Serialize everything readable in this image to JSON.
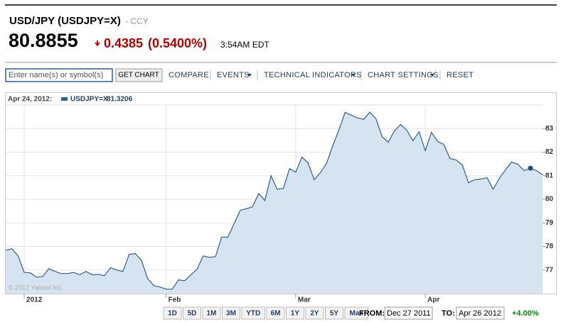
{
  "header": {
    "title": "USD/JPY (USDJPY=X)",
    "subtitle": "- CCY",
    "price": "80.8855",
    "change": "0.4385",
    "change_percent": "(0.5400%)",
    "time": "3:54AM EDT"
  },
  "toolbar": {
    "search_placeholder": "Enter name(s) or symbol(s)",
    "get_chart": "GET CHART",
    "compare": "COMPARE",
    "events": "EVENTS",
    "technical_indicators": "TECHNICAL INDICATORS",
    "chart_settings": "CHART SETTINGS",
    "reset": "RESET"
  },
  "chart_data": {
    "type": "area",
    "hover_date": "Apr 24, 2012:",
    "hover_value": 81.3206,
    "watermark": "© 2012 Yahoo! Inc.",
    "categories": [
      null,
      null,
      null,
      "2012",
      null,
      null,
      null,
      null,
      null,
      null,
      null,
      null,
      null,
      null,
      null,
      null,
      null,
      null,
      null,
      null,
      null,
      null,
      null,
      null,
      null,
      null,
      "Feb",
      null,
      null,
      null,
      null,
      null,
      null,
      null,
      null,
      null,
      null,
      null,
      null,
      null,
      null,
      null,
      null,
      null,
      null,
      null,
      null,
      "Mar",
      null,
      null,
      null,
      null,
      null,
      null,
      null,
      null,
      null,
      null,
      null,
      null,
      null,
      null,
      null,
      null,
      null,
      null,
      null,
      null,
      "Apr",
      null,
      null,
      null,
      null,
      null,
      null,
      null,
      null,
      null,
      null,
      null,
      null,
      null,
      null,
      null,
      null,
      null,
      null,
      null
    ],
    "series": [
      {
        "name": "USDJPY=X",
        "color": "#2f5f8e",
        "fill": "#d5e4f0",
        "values": [
          77.84,
          77.9,
          77.6,
          76.9,
          76.88,
          76.7,
          76.73,
          77.06,
          76.94,
          76.85,
          76.85,
          76.9,
          76.8,
          76.94,
          76.8,
          76.82,
          76.76,
          77.1,
          77.0,
          76.94,
          77.66,
          77.7,
          77.42,
          76.64,
          76.34,
          76.28,
          76.19,
          76.19,
          76.58,
          76.55,
          76.79,
          77.03,
          77.6,
          77.54,
          77.57,
          78.4,
          78.39,
          78.96,
          79.53,
          79.6,
          79.68,
          80.25,
          79.95,
          81.0,
          80.43,
          80.46,
          81.3,
          81.15,
          81.79,
          81.55,
          80.83,
          81.13,
          81.52,
          82.27,
          82.93,
          83.69,
          83.57,
          83.45,
          83.39,
          83.69,
          83.42,
          82.66,
          82.42,
          82.9,
          83.17,
          82.93,
          82.48,
          82.87,
          82.06,
          82.84,
          82.45,
          82.33,
          81.73,
          81.67,
          81.46,
          80.7,
          80.83,
          80.86,
          80.92,
          80.43,
          80.89,
          81.25,
          81.58,
          81.49,
          81.22,
          81.3,
          81.22,
          81.04
        ]
      }
    ],
    "ylim": [
      76,
      84
    ],
    "yticks": [
      77,
      78,
      79,
      80,
      81,
      82,
      83
    ],
    "grid": true
  },
  "footer": {
    "ranges": [
      "1D",
      "5D",
      "1M",
      "3M",
      "YTD",
      "6M",
      "1Y",
      "2Y",
      "5Y",
      "Max"
    ],
    "from_label": "FROM:",
    "from_value": "Dec 27 2011",
    "to_label": "TO:",
    "to_value": "Apr 26 2012",
    "change": "+4.00%"
  }
}
